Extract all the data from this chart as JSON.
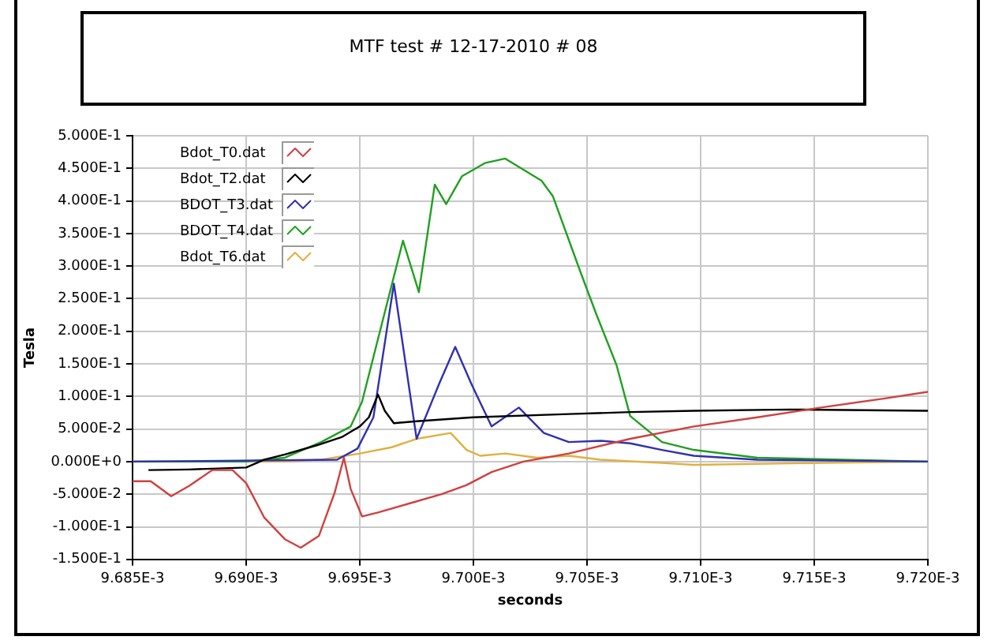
{
  "chart_data": {
    "type": "line",
    "title": "MTF test # 12-17-2010 # 08",
    "xlabel": "seconds",
    "ylabel": "Tesla",
    "xlim": [
      0.009685,
      0.00972
    ],
    "xticks": [
      {
        "value": 0.009685,
        "label": "9.685E-3"
      },
      {
        "value": 0.00969,
        "label": "9.690E-3"
      },
      {
        "value": 0.009695,
        "label": "9.695E-3"
      },
      {
        "value": 0.0097,
        "label": "9.700E-3"
      },
      {
        "value": 0.009705,
        "label": "9.705E-3"
      },
      {
        "value": 0.00971,
        "label": "9.710E-3"
      },
      {
        "value": 0.009715,
        "label": "9.715E-3"
      },
      {
        "value": 0.00972,
        "label": "9.720E-3"
      }
    ],
    "ylim": [
      -0.15,
      0.5
    ],
    "yticks": [
      {
        "value": -0.15,
        "label": "-1.500E-1"
      },
      {
        "value": -0.1,
        "label": "-1.000E-1"
      },
      {
        "value": -0.05,
        "label": "-5.000E-2"
      },
      {
        "value": 0,
        "label": "0.000E+0"
      },
      {
        "value": 0.05,
        "label": "5.000E-2"
      },
      {
        "value": 0.1,
        "label": "1.000E-1"
      },
      {
        "value": 0.15,
        "label": "1.500E-1"
      },
      {
        "value": 0.2,
        "label": "2.000E-1"
      },
      {
        "value": 0.25,
        "label": "2.500E-1"
      },
      {
        "value": 0.3,
        "label": "3.000E-1"
      },
      {
        "value": 0.35,
        "label": "3.500E-1"
      },
      {
        "value": 0.4,
        "label": "4.000E-1"
      },
      {
        "value": 0.45,
        "label": "4.500E-1"
      },
      {
        "value": 0.5,
        "label": "5.000E-1"
      }
    ],
    "grid": true,
    "legend": "top left",
    "marker": "none",
    "line_style": "solid",
    "series": [
      {
        "name": "Bdot_T0.dat",
        "color": "#d04040",
        "x": [
          0.009685,
          0.0096858,
          0.0096867,
          0.0096875,
          0.0096885,
          0.0096894,
          0.00969,
          0.0096908,
          0.0096917,
          0.0096924,
          0.0096932,
          0.0096939,
          0.0096943,
          0.0096946,
          0.0096951,
          0.0096958,
          0.0096972,
          0.0096986,
          0.0096997,
          0.0097008,
          0.0097022,
          0.0097042,
          0.0097069,
          0.0097097,
          0.0097125,
          0.0097153,
          0.0097181,
          0.00972
        ],
        "values": [
          -0.03,
          -0.03,
          -0.053,
          -0.037,
          -0.013,
          -0.013,
          -0.033,
          -0.086,
          -0.119,
          -0.132,
          -0.114,
          -0.047,
          0.006,
          -0.042,
          -0.084,
          -0.078,
          -0.064,
          -0.05,
          -0.036,
          -0.016,
          0,
          0.0125,
          0.035,
          0.054,
          0.068,
          0.083,
          0.097,
          0.107
        ]
      },
      {
        "name": "Bdot_T2.dat",
        "color": "#000000",
        "x": [
          0.0096857,
          0.0096875,
          0.00969,
          0.0096908,
          0.0096917,
          0.0096931,
          0.0096942,
          0.009695,
          0.0096954,
          0.0096958,
          0.0096961,
          0.0096965,
          0.0096975,
          0.0097,
          0.0097042,
          0.0097069,
          0.0097097,
          0.0097139,
          0.00972
        ],
        "values": [
          -0.013,
          -0.012,
          -0.009,
          0.003,
          0.011,
          0.025,
          0.0375,
          0.054,
          0.068,
          0.103,
          0.078,
          0.059,
          0.062,
          0.068,
          0.073,
          0.076,
          0.078,
          0.08,
          0.078
        ]
      },
      {
        "name": "BDOT_T3.dat",
        "color": "#3030b0",
        "x": [
          0.009685,
          0.009694,
          0.0096949,
          0.0096956,
          0.0096965,
          0.0096975,
          0.0096985,
          0.0096992,
          0.0096999,
          0.0097008,
          0.009702,
          0.0097031,
          0.0097042,
          0.0097056,
          0.0097069,
          0.0097083,
          0.0097097,
          0.0097125,
          0.00972
        ],
        "values": [
          0,
          0.003,
          0.02,
          0.068,
          0.273,
          0.035,
          0.12,
          0.176,
          0.12,
          0.054,
          0.083,
          0.044,
          0.03,
          0.032,
          0.028,
          0.018,
          0.009,
          0.003,
          0
        ]
      },
      {
        "name": "BDOT_T4.dat",
        "color": "#20a020",
        "x": [
          0.009685,
          0.00969,
          0.0096917,
          0.0096933,
          0.0096946,
          0.0096951,
          0.0096969,
          0.0096976,
          0.0096983,
          0.0096988,
          0.0096995,
          0.0097005,
          0.0097014,
          0.009703,
          0.0097035,
          0.0097047,
          0.0097054,
          0.0097063,
          0.0097069,
          0.0097083,
          0.0097097,
          0.0097125,
          0.00972
        ],
        "values": [
          0,
          0,
          0.006,
          0.03,
          0.054,
          0.092,
          0.339,
          0.26,
          0.425,
          0.395,
          0.438,
          0.458,
          0.465,
          0.431,
          0.407,
          0.292,
          0.227,
          0.148,
          0.07,
          0.03,
          0.018,
          0.006,
          0
        ]
      },
      {
        "name": "Bdot_T6.dat",
        "color": "#e0b040",
        "x": [
          0.009685,
          0.0096917,
          0.0096933,
          0.009695,
          0.0096964,
          0.0096975,
          0.009699,
          0.0096997,
          0.0097003,
          0.0097014,
          0.0097028,
          0.0097042,
          0.0097056,
          0.0097083,
          0.0097097,
          0.0097153,
          0.00972
        ],
        "values": [
          0,
          0,
          0.003,
          0.0125,
          0.022,
          0.035,
          0.044,
          0.018,
          0.009,
          0.0125,
          0.006,
          0.009,
          0.003,
          -0.002,
          -0.005,
          -0.002,
          0
        ]
      }
    ]
  }
}
